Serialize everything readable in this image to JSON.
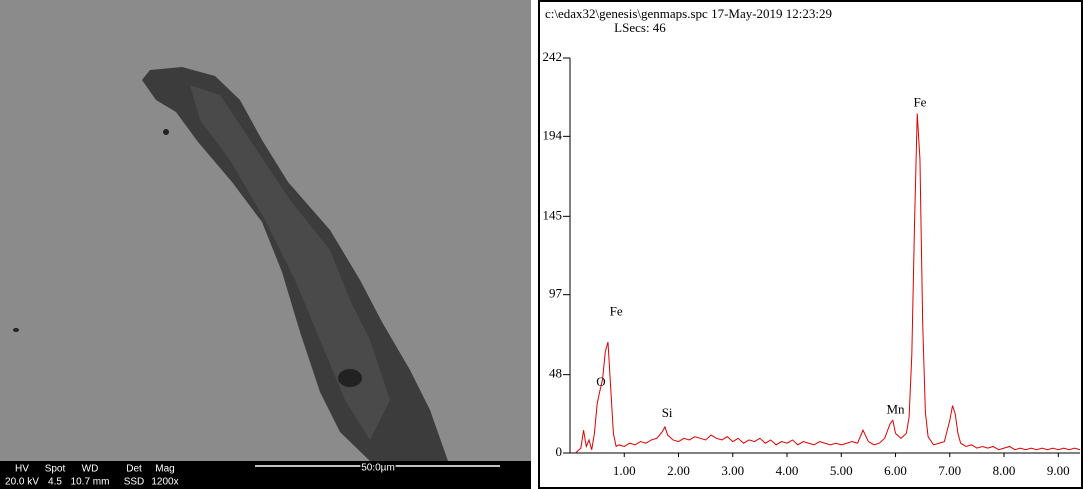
{
  "sem_info": {
    "fields": [
      {
        "label": "HV",
        "value": "20.0 kV"
      },
      {
        "label": "Spot",
        "value": "4.5"
      },
      {
        "label": "WD",
        "value": "10.7 mm"
      },
      {
        "label": "Det",
        "value": "SSD"
      },
      {
        "label": "Mag",
        "value": "1200x"
      }
    ],
    "scale_bar": "50.0µm"
  },
  "chart_data": {
    "type": "line",
    "title": "c:\\edax32\\genesis\\genmaps.spc  17-May-2019 12:23:29",
    "subtitle": "LSecs: 46",
    "color": "#e00000",
    "x": [
      0.1,
      0.2,
      0.25,
      0.3,
      0.35,
      0.4,
      0.45,
      0.5,
      0.55,
      0.6,
      0.65,
      0.7,
      0.75,
      0.8,
      0.85,
      0.9,
      1.0,
      1.1,
      1.2,
      1.3,
      1.4,
      1.5,
      1.6,
      1.7,
      1.75,
      1.8,
      1.9,
      2.0,
      2.1,
      2.2,
      2.3,
      2.4,
      2.5,
      2.6,
      2.7,
      2.8,
      2.9,
      3.0,
      3.1,
      3.2,
      3.3,
      3.4,
      3.5,
      3.6,
      3.7,
      3.8,
      3.9,
      4.0,
      4.1,
      4.2,
      4.3,
      4.4,
      4.5,
      4.6,
      4.7,
      4.8,
      4.9,
      5.0,
      5.1,
      5.2,
      5.3,
      5.4,
      5.5,
      5.6,
      5.7,
      5.8,
      5.9,
      5.95,
      6.0,
      6.1,
      6.2,
      6.25,
      6.3,
      6.35,
      6.4,
      6.45,
      6.5,
      6.55,
      6.6,
      6.7,
      6.8,
      6.9,
      7.0,
      7.05,
      7.1,
      7.15,
      7.2,
      7.3,
      7.4,
      7.5,
      7.6,
      7.7,
      7.8,
      7.9,
      8.0,
      8.1,
      8.2,
      8.3,
      8.4,
      8.5,
      8.6,
      8.7,
      8.8,
      8.9,
      9.0,
      9.1,
      9.2,
      9.3,
      9.4
    ],
    "values": [
      0,
      3,
      14,
      4,
      8,
      2,
      12,
      30,
      38,
      45,
      62,
      68,
      40,
      12,
      4,
      5,
      4,
      6,
      5,
      7,
      6,
      8,
      9,
      13,
      16,
      11,
      8,
      7,
      9,
      8,
      10,
      9,
      8,
      11,
      9,
      8,
      10,
      7,
      9,
      6,
      8,
      7,
      9,
      6,
      8,
      5,
      7,
      6,
      8,
      5,
      7,
      6,
      5,
      7,
      6,
      5,
      6,
      5,
      6,
      7,
      6,
      14,
      7,
      5,
      6,
      9,
      18,
      20,
      12,
      9,
      12,
      22,
      60,
      140,
      208,
      180,
      80,
      25,
      10,
      5,
      6,
      7,
      20,
      29,
      24,
      12,
      6,
      4,
      5,
      3,
      4,
      3,
      4,
      2,
      3,
      4,
      2,
      3,
      2,
      3,
      2,
      3,
      2,
      3,
      2,
      3,
      2,
      3,
      2
    ],
    "xlim": [
      0,
      9.4
    ],
    "ylim": [
      0,
      242
    ],
    "yticks": [
      0,
      48,
      97,
      145,
      194,
      242
    ],
    "xticks": [
      {
        "value": 1,
        "label": "1.00"
      },
      {
        "value": 2,
        "label": "2.00"
      },
      {
        "value": 3,
        "label": "3.00"
      },
      {
        "value": 4,
        "label": "4.00"
      },
      {
        "value": 5,
        "label": "5.00"
      },
      {
        "value": 6,
        "label": "6.00"
      },
      {
        "value": 7,
        "label": "7.00"
      },
      {
        "value": 8,
        "label": "8.00"
      },
      {
        "value": 9,
        "label": "9.00"
      }
    ],
    "annotations": [
      {
        "label": "O",
        "x": 0.57,
        "y": 43
      },
      {
        "label": "Fe",
        "x": 0.85,
        "y": 86
      },
      {
        "label": "Si",
        "x": 1.79,
        "y": 24
      },
      {
        "label": "Mn",
        "x": 6.0,
        "y": 26
      },
      {
        "label": "Fe",
        "x": 6.45,
        "y": 214
      }
    ]
  }
}
